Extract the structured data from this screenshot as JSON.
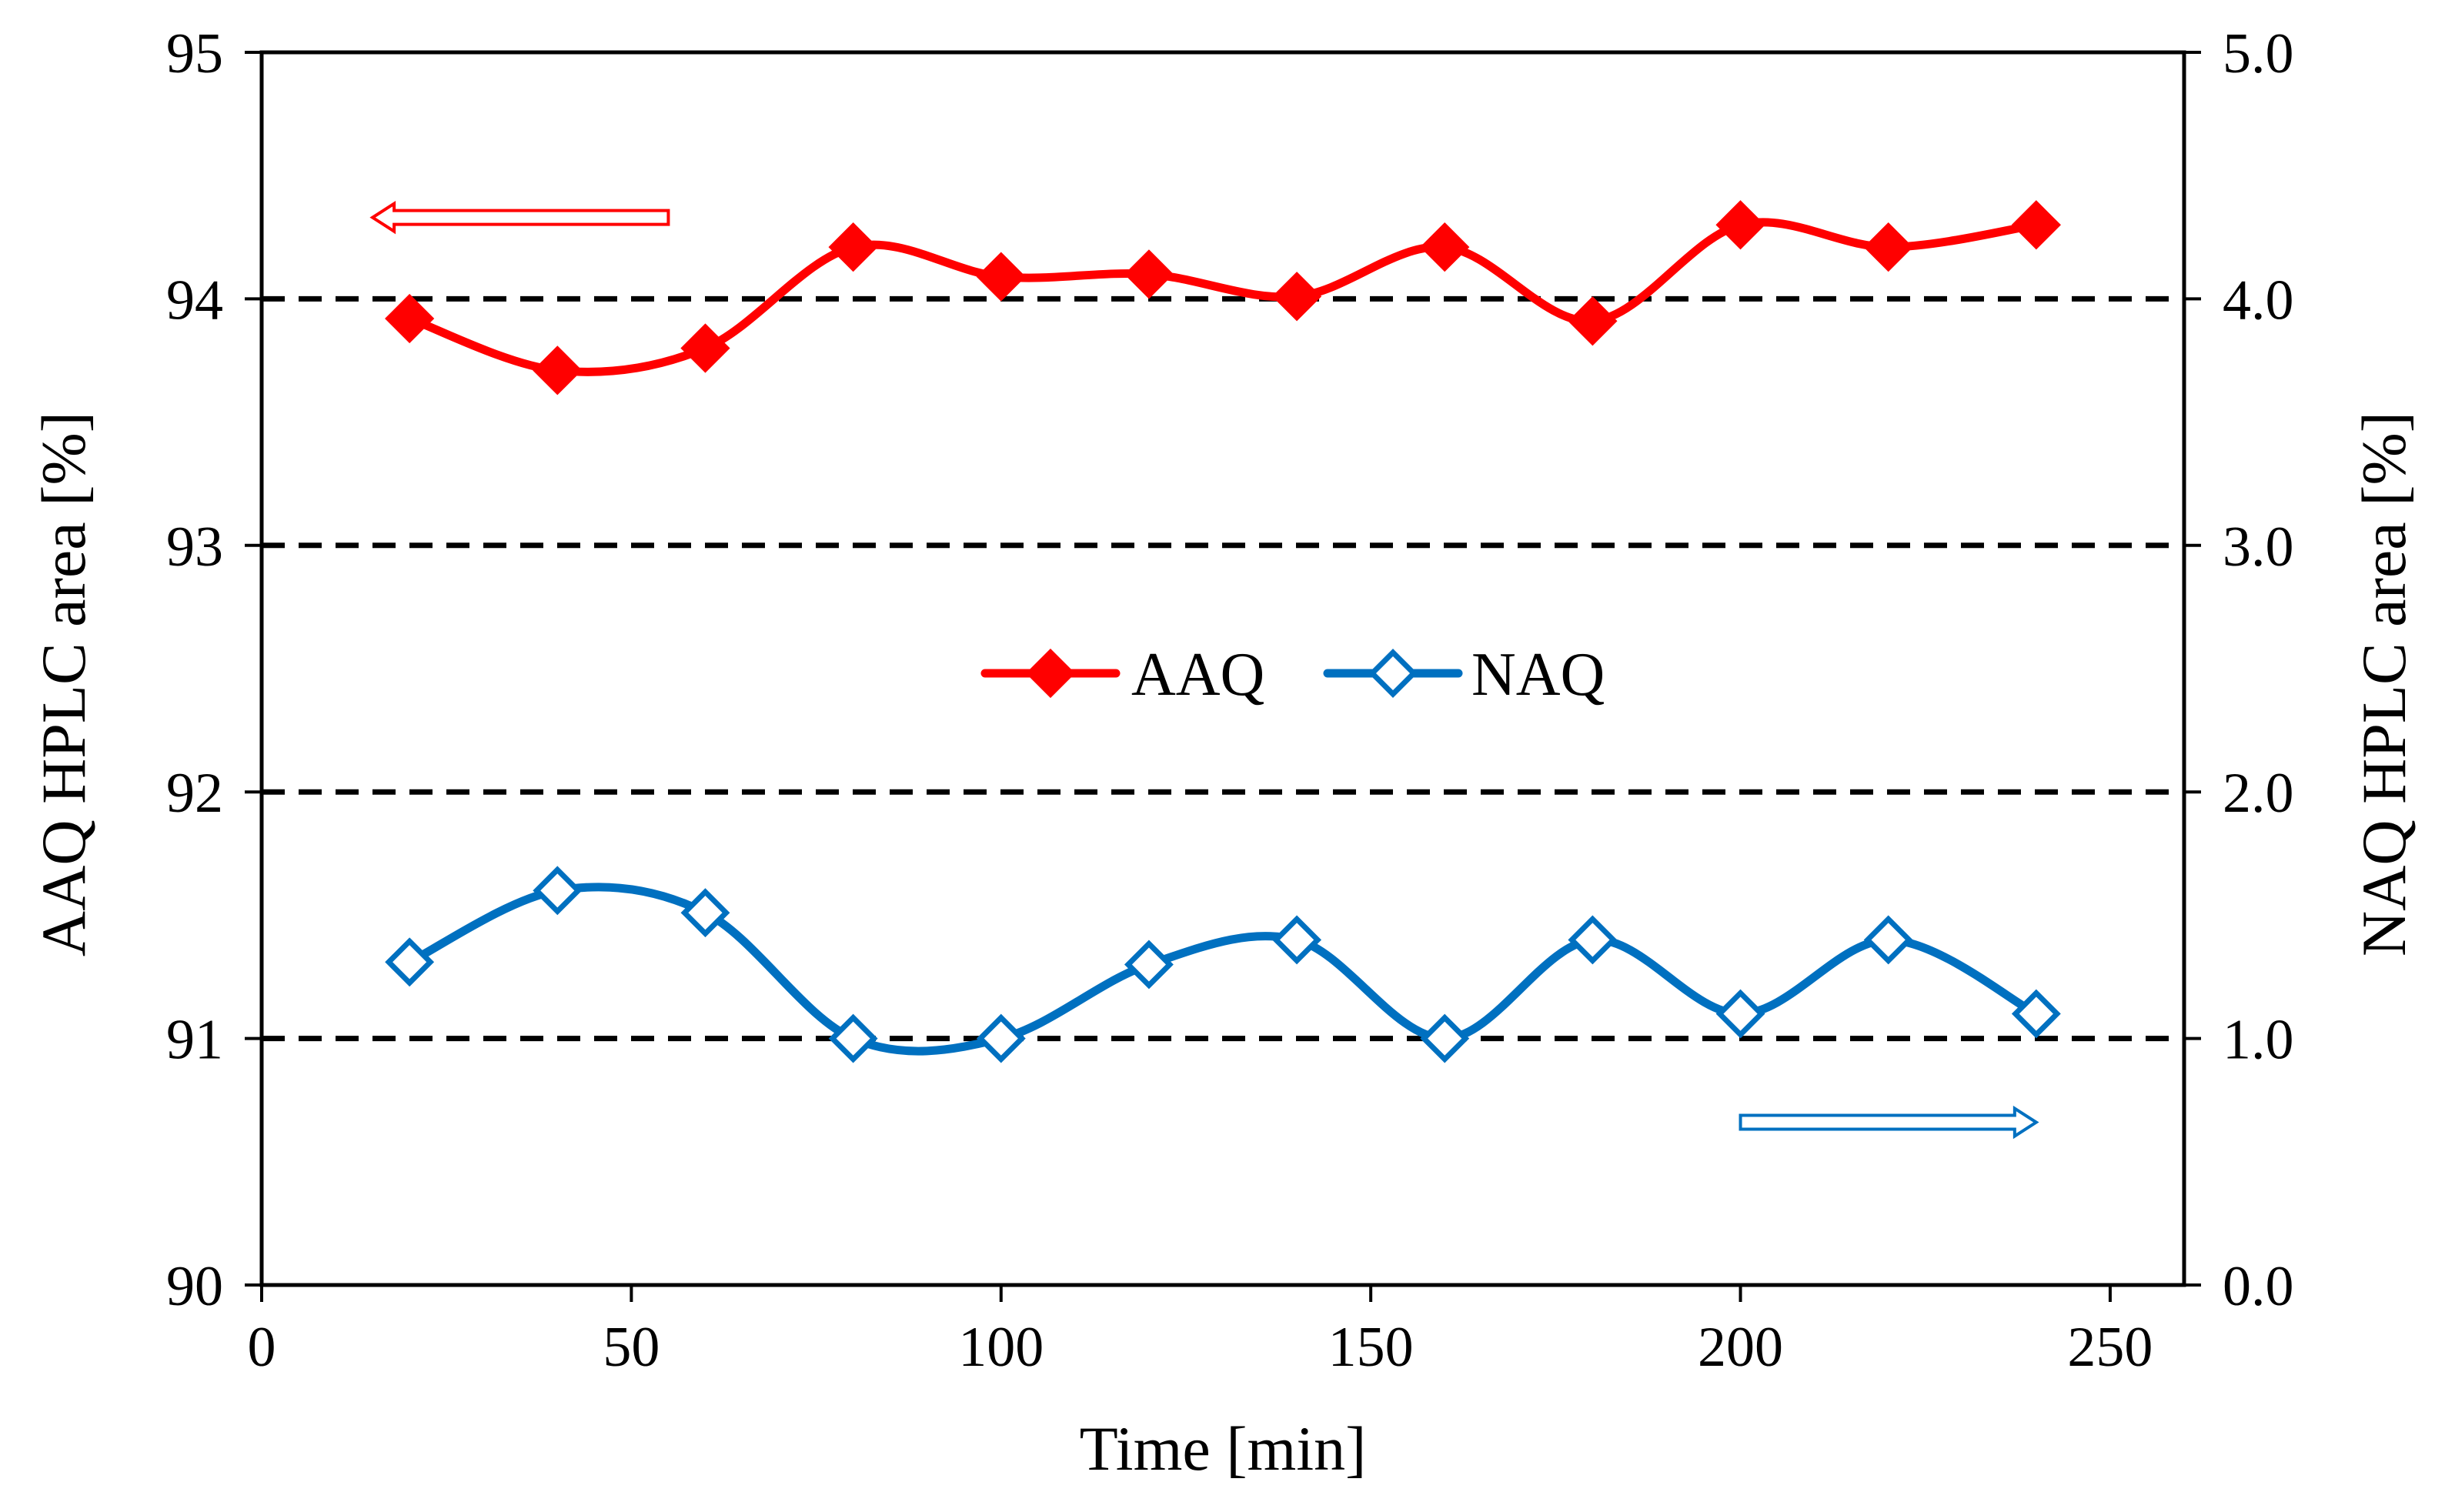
{
  "chart_data": {
    "type": "line",
    "title": "",
    "xlabel": "Time [min]",
    "ylabel_left": "AAQ HPLC area [%]",
    "ylabel_right": "NAQ HPLC area [%]",
    "xlim": [
      0,
      260
    ],
    "ylim_left": [
      90,
      95
    ],
    "ylim_right": [
      0.0,
      5.0
    ],
    "x_ticks": [
      0,
      50,
      100,
      150,
      200,
      250
    ],
    "x_tick_labels": [
      "0",
      "50",
      "100",
      "150",
      "200",
      "250"
    ],
    "y_left_ticks": [
      90,
      91,
      92,
      93,
      94,
      95
    ],
    "y_left_tick_labels": [
      "90",
      "91",
      "92",
      "93",
      "94",
      "95"
    ],
    "y_right_ticks": [
      0.0,
      1.0,
      2.0,
      3.0,
      4.0,
      5.0
    ],
    "y_right_tick_labels": [
      "0.0",
      "1.0",
      "2.0",
      "3.0",
      "4.0",
      "5.0"
    ],
    "gridlines_dashed_at_left": [
      91,
      92,
      93,
      94
    ],
    "legend_placement": "center",
    "series": [
      {
        "name": "AAQ",
        "axis": "left",
        "color": "#ff0000",
        "marker": "filled-diamond",
        "x": [
          20,
          40,
          60,
          80,
          100,
          120,
          140,
          160,
          180,
          200,
          220,
          240
        ],
        "values": [
          93.92,
          93.71,
          93.8,
          94.21,
          94.09,
          94.1,
          94.01,
          94.21,
          93.91,
          94.3,
          94.21,
          94.3
        ]
      },
      {
        "name": "NAQ",
        "axis": "right",
        "color": "#0070c0",
        "marker": "open-diamond",
        "x": [
          20,
          40,
          60,
          80,
          100,
          120,
          140,
          160,
          180,
          200,
          220,
          240
        ],
        "values": [
          1.31,
          1.6,
          1.51,
          1.0,
          1.0,
          1.3,
          1.4,
          1.0,
          1.4,
          1.1,
          1.4,
          1.1
        ]
      }
    ],
    "annotations": [
      {
        "type": "arrow",
        "direction": "left",
        "points_to_axis": "left",
        "color": "#ff0000",
        "from_x": 55,
        "to_x": 15,
        "at_value": 94.33
      },
      {
        "type": "arrow",
        "direction": "right",
        "points_to_axis": "right",
        "color": "#0070c0",
        "from_x": 200,
        "to_x": 240,
        "at_value": 0.66
      }
    ]
  }
}
